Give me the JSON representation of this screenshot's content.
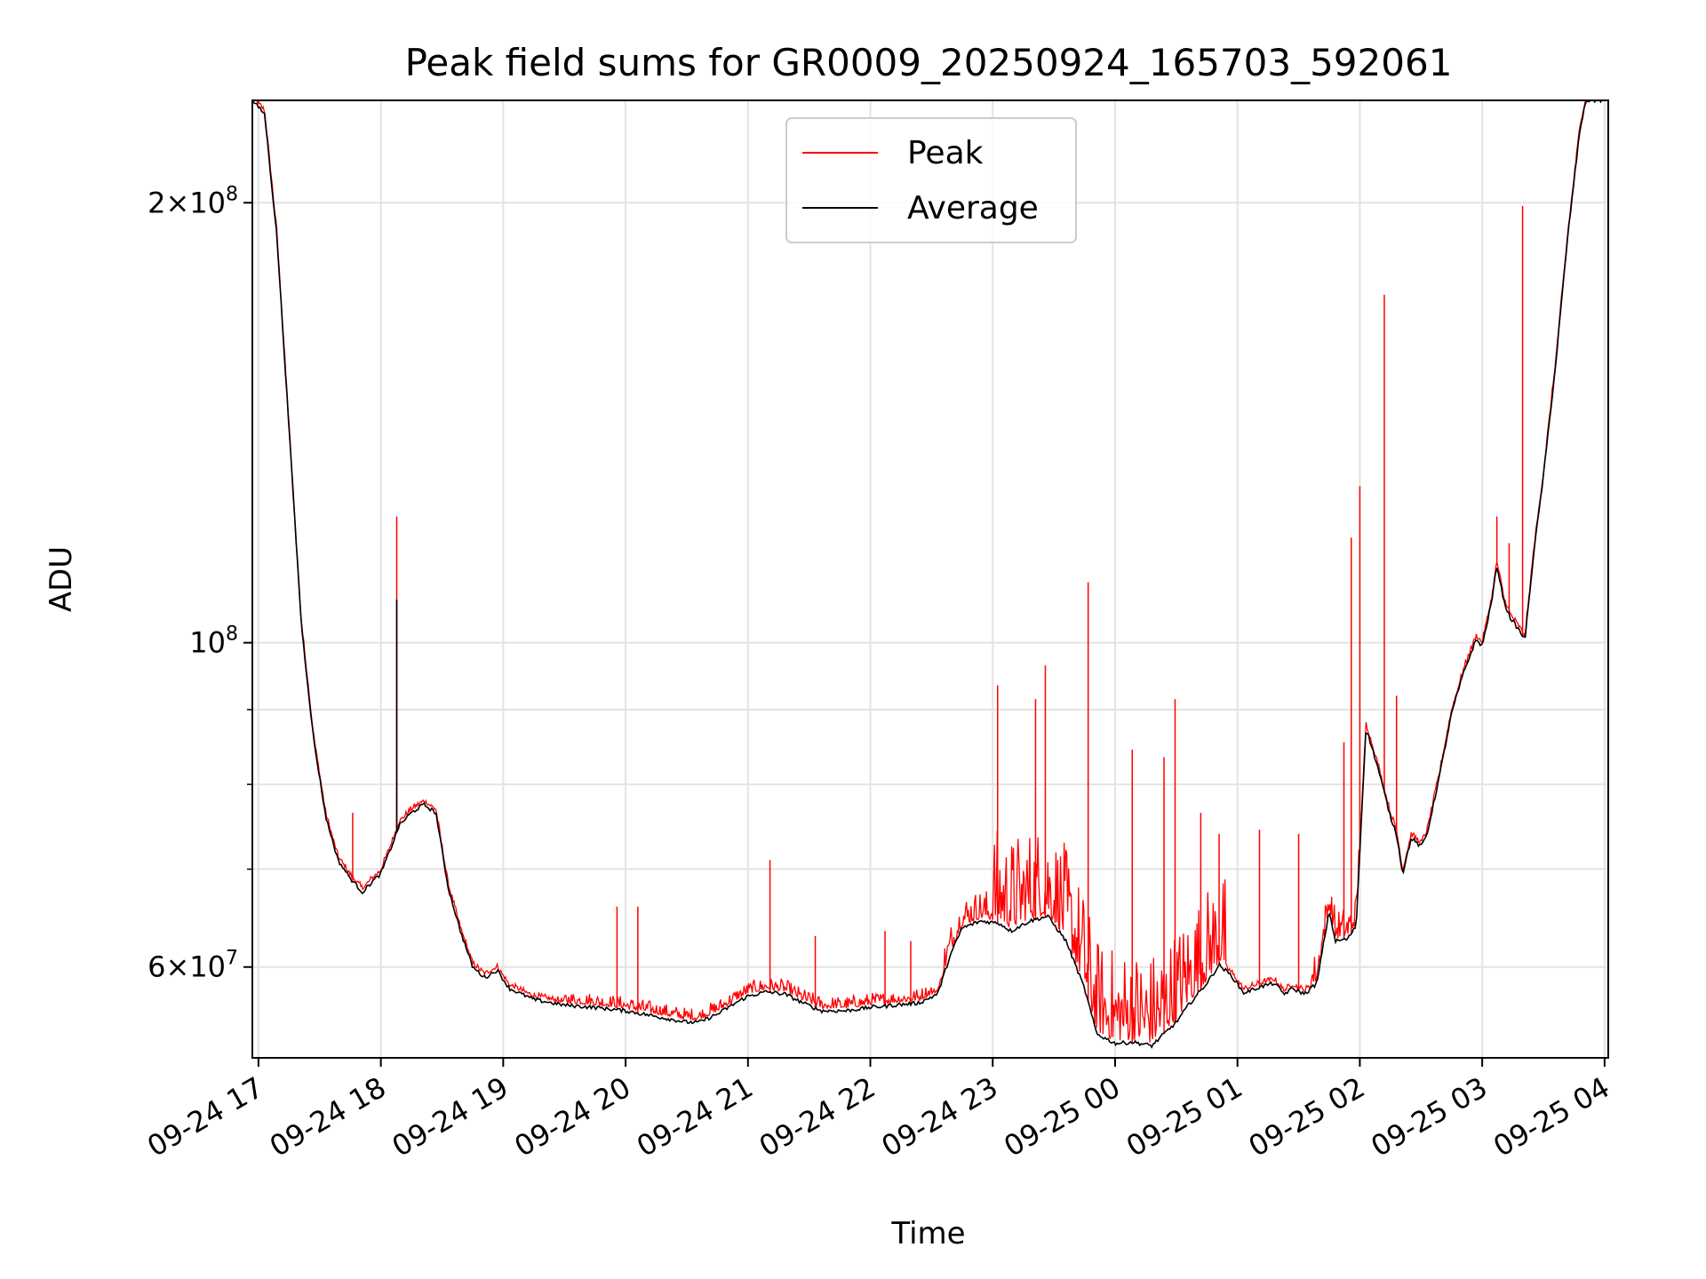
{
  "chart_data": {
    "type": "line",
    "title": "Peak field sums for GR0009_20250924_165703_592061",
    "xlabel": "Time",
    "ylabel": "ADU",
    "yscale": "log",
    "ylim": [
      52000000,
      235000000
    ],
    "xlim_hours": [
      16.95,
      28.03
    ],
    "grid": true,
    "legend_position": "upper center",
    "x_ticks": [
      {
        "hour": 17,
        "label": "09-24 17"
      },
      {
        "hour": 18,
        "label": "09-24 18"
      },
      {
        "hour": 19,
        "label": "09-24 19"
      },
      {
        "hour": 20,
        "label": "09-24 20"
      },
      {
        "hour": 21,
        "label": "09-24 21"
      },
      {
        "hour": 22,
        "label": "09-24 22"
      },
      {
        "hour": 23,
        "label": "09-24 23"
      },
      {
        "hour": 24,
        "label": "09-25 00"
      },
      {
        "hour": 25,
        "label": "09-25 01"
      },
      {
        "hour": 26,
        "label": "09-25 02"
      },
      {
        "hour": 27,
        "label": "09-25 03"
      },
      {
        "hour": 28,
        "label": "09-25 04"
      }
    ],
    "y_major_ticks": [
      {
        "value": 60000000,
        "base": "6",
        "exp": "7"
      },
      {
        "value": 100000000,
        "base": "",
        "exp": "8"
      },
      {
        "value": 200000000,
        "base": "2",
        "exp": "8"
      }
    ],
    "y_minor_grid": [
      70000000,
      80000000,
      90000000
    ],
    "series": [
      {
        "name": "Peak",
        "color": "#ff0000",
        "spikes": [
          {
            "x": 17.77,
            "y": 76500000
          },
          {
            "x": 18.13,
            "y": 122000000
          },
          {
            "x": 19.93,
            "y": 66000000
          },
          {
            "x": 20.1,
            "y": 66000000
          },
          {
            "x": 21.18,
            "y": 71000000
          },
          {
            "x": 21.55,
            "y": 63000000
          },
          {
            "x": 22.12,
            "y": 63500000
          },
          {
            "x": 22.33,
            "y": 62500000
          },
          {
            "x": 23.04,
            "y": 93500000
          },
          {
            "x": 23.35,
            "y": 91500000
          },
          {
            "x": 23.43,
            "y": 96500000
          },
          {
            "x": 23.78,
            "y": 110000000
          },
          {
            "x": 24.14,
            "y": 84500000
          },
          {
            "x": 24.4,
            "y": 83500000
          },
          {
            "x": 24.49,
            "y": 91500000
          },
          {
            "x": 24.7,
            "y": 76500000
          },
          {
            "x": 24.85,
            "y": 74000000
          },
          {
            "x": 25.18,
            "y": 74500000
          },
          {
            "x": 25.5,
            "y": 74000000
          },
          {
            "x": 25.87,
            "y": 85500000
          },
          {
            "x": 25.93,
            "y": 118000000
          },
          {
            "x": 26.0,
            "y": 128000000
          },
          {
            "x": 26.2,
            "y": 173000000
          },
          {
            "x": 26.3,
            "y": 92000000
          },
          {
            "x": 27.12,
            "y": 122000000
          },
          {
            "x": 27.22,
            "y": 117000000
          },
          {
            "x": 27.33,
            "y": 199000000
          },
          {
            "x": 27.53,
            "y": 138000000
          }
        ]
      },
      {
        "name": "Average",
        "color": "#000000",
        "points": [
          [
            16.95,
            235000000
          ],
          [
            17.05,
            230000000
          ],
          [
            17.15,
            190000000
          ],
          [
            17.25,
            140000000
          ],
          [
            17.35,
            103000000
          ],
          [
            17.45,
            86000000
          ],
          [
            17.55,
            76000000
          ],
          [
            17.65,
            71000000
          ],
          [
            17.75,
            69000000
          ],
          [
            17.85,
            67500000
          ],
          [
            17.92,
            68500000
          ],
          [
            18.0,
            69500000
          ],
          [
            18.1,
            73000000
          ],
          [
            18.15,
            75000000
          ],
          [
            18.25,
            76500000
          ],
          [
            18.35,
            77500000
          ],
          [
            18.45,
            76500000
          ],
          [
            18.55,
            68000000
          ],
          [
            18.65,
            63500000
          ],
          [
            18.75,
            60000000
          ],
          [
            18.85,
            59000000
          ],
          [
            18.95,
            59700000
          ],
          [
            19.05,
            58000000
          ],
          [
            19.25,
            57000000
          ],
          [
            19.5,
            56500000
          ],
          [
            19.75,
            56300000
          ],
          [
            20.0,
            56000000
          ],
          [
            20.25,
            55500000
          ],
          [
            20.5,
            55000000
          ],
          [
            20.6,
            55000000
          ],
          [
            20.75,
            55700000
          ],
          [
            20.9,
            56700000
          ],
          [
            21.0,
            57300000
          ],
          [
            21.15,
            57700000
          ],
          [
            21.3,
            57500000
          ],
          [
            21.45,
            56700000
          ],
          [
            21.6,
            56000000
          ],
          [
            21.8,
            56000000
          ],
          [
            22.0,
            56300000
          ],
          [
            22.2,
            56500000
          ],
          [
            22.4,
            56700000
          ],
          [
            22.55,
            57500000
          ],
          [
            22.65,
            61000000
          ],
          [
            22.75,
            63800000
          ],
          [
            22.9,
            64500000
          ],
          [
            23.05,
            64300000
          ],
          [
            23.15,
            63500000
          ],
          [
            23.3,
            64500000
          ],
          [
            23.45,
            65000000
          ],
          [
            23.6,
            62500000
          ],
          [
            23.75,
            58000000
          ],
          [
            23.85,
            54000000
          ],
          [
            24.0,
            53200000
          ],
          [
            24.15,
            53300000
          ],
          [
            24.3,
            53000000
          ],
          [
            24.5,
            55000000
          ],
          [
            24.6,
            56500000
          ],
          [
            24.75,
            58500000
          ],
          [
            24.85,
            60200000
          ],
          [
            24.95,
            59200000
          ],
          [
            25.05,
            57600000
          ],
          [
            25.2,
            58200000
          ],
          [
            25.3,
            58500000
          ],
          [
            25.38,
            57500000
          ],
          [
            25.45,
            58000000
          ],
          [
            25.55,
            57500000
          ],
          [
            25.65,
            58500000
          ],
          [
            25.7,
            62000000
          ],
          [
            25.75,
            65500000
          ],
          [
            25.8,
            62500000
          ],
          [
            25.9,
            62700000
          ],
          [
            25.97,
            64000000
          ],
          [
            26.05,
            87500000
          ],
          [
            26.15,
            82000000
          ],
          [
            26.25,
            76000000
          ],
          [
            26.3,
            74000000
          ],
          [
            26.35,
            69500000
          ],
          [
            26.42,
            73500000
          ],
          [
            26.5,
            72500000
          ],
          [
            26.55,
            74000000
          ],
          [
            26.65,
            81000000
          ],
          [
            26.75,
            89500000
          ],
          [
            26.85,
            95500000
          ],
          [
            26.95,
            100500000
          ],
          [
            27.0,
            99500000
          ],
          [
            27.08,
            107000000
          ],
          [
            27.12,
            113000000
          ],
          [
            27.18,
            106500000
          ],
          [
            27.23,
            104000000
          ],
          [
            27.3,
            102000000
          ],
          [
            27.35,
            100500000
          ],
          [
            27.42,
            115000000
          ],
          [
            27.5,
            130000000
          ],
          [
            27.6,
            155000000
          ],
          [
            27.7,
            190000000
          ],
          [
            27.8,
            225000000
          ],
          [
            27.85,
            235000000
          ]
        ]
      }
    ]
  }
}
